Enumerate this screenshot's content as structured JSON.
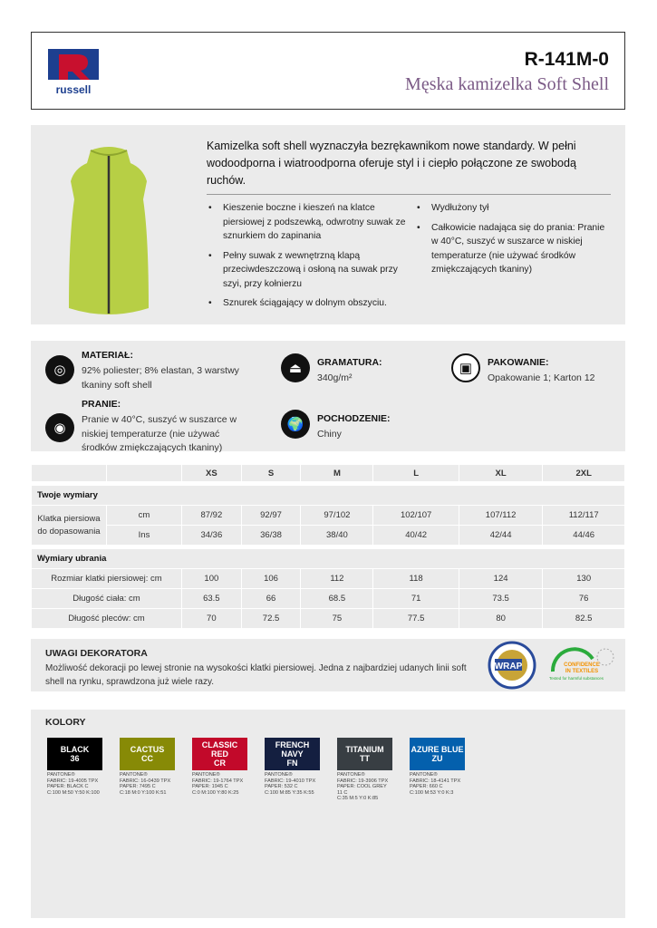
{
  "header": {
    "brand": "russell",
    "code": "R-141M-0",
    "title": "Męska kamizelka Soft Shell"
  },
  "product": {
    "intro": "Kamizelka soft shell wyznaczyła bezrękawnikom nowe standardy. W pełni wodoodporna i wiatroodporna oferuje styl i i ciepło połączone ze swobodą ruchów.",
    "features_left": [
      "Kieszenie boczne i kieszeń na klatce piersiowej z podszewką, odwrotny suwak ze sznurkiem do zapinania",
      "Pełny suwak z wewnętrzną klapą przeciwdeszczową i osłoną na suwak przy szyi, przy kołnierzu",
      "Sznurek ściągający w dolnym obszyciu."
    ],
    "features_right": [
      "Wydłużony tył",
      "Całkowicie nadająca się do prania: Pranie w 40°C, suszyć w suszarce w niskiej temperaturze (nie używać środków zmiękczających tkaniny)"
    ],
    "vest_color": "#b7cf45"
  },
  "specs": {
    "material": {
      "label": "MATERIAŁ:",
      "value": "92% poliester; 8% elastan, 3 warstwy tkaniny soft shell",
      "icon": "fabric-roll-icon"
    },
    "washing": {
      "label": "PRANIE:",
      "value": "Pranie w 40°C, suszyć w suszarce w niskiej temperaturze (nie używać środków zmiękczających tkaniny)",
      "icon": "washing-machine-icon"
    },
    "weight": {
      "label": "GRAMATURA:",
      "value": "340g/m²",
      "icon": "weight-icon"
    },
    "origin": {
      "label": "POCHODZENIE:",
      "value": "Chiny",
      "icon": "globe-icon"
    },
    "packing": {
      "label": "PAKOWANIE:",
      "value": "Opakowanie 1; Karton 12",
      "icon": "box-icon"
    }
  },
  "sizes": {
    "headers": [
      "XS",
      "S",
      "M",
      "L",
      "XL",
      "2XL"
    ],
    "your_section": "Twoje wymiary",
    "chest_fit": "Klatka piersiowa do dopasowania",
    "cm_label": "cm",
    "cm": [
      "87/92",
      "92/97",
      "97/102",
      "102/107",
      "107/112",
      "112/117"
    ],
    "ins_label": "Ins",
    "ins": [
      "34/36",
      "36/38",
      "38/40",
      "40/42",
      "42/44",
      "44/46"
    ],
    "garment_section": "Wymiary  ubrania",
    "rows": [
      {
        "label": "Rozmiar klatki piersiowej: cm",
        "values": [
          "100",
          "106",
          "112",
          "118",
          "124",
          "130"
        ]
      },
      {
        "label": "Długość ciała: cm",
        "values": [
          "63.5",
          "66",
          "68.5",
          "71",
          "73.5",
          "76"
        ]
      },
      {
        "label": "Długość pleców: cm",
        "values": [
          "70",
          "72.5",
          "75",
          "77.5",
          "80",
          "82.5"
        ]
      }
    ]
  },
  "decorator": {
    "title": "UWAGI DEKORATORA",
    "text": "Możliwość dekoracji po lewej stronie na wysokości klatki piersiowej. Jedna z najbardziej udanych linii soft shell na rynku, sprawdzona już wiele razy.",
    "wrap_logo": "WRAP WORLDWIDE RESPONSIBLE ACCREDITED PRODUCTION",
    "oeko_logo": "CONFIDENCE IN TEXTILES Tested for harmful substances"
  },
  "colors": {
    "title": "KOLORY",
    "items": [
      {
        "name": "BLACK\n36",
        "hex": "#000000",
        "info": "PANTONE®\nFABRIC: 19-4005 TPX\nPAPER: BLACK C\nC:100 M:50 Y:50 K:100"
      },
      {
        "name": "CACTUS\nCC",
        "hex": "#878a06",
        "info": "PANTONE®\nFABRIC: 16-0439 TPX\nPAPER: 7495 C\nC:18 M:0 Y:100 K:51"
      },
      {
        "name": "CLASSIC\nRED\nCR",
        "hex": "#c2092a",
        "info": "PANTONE®\nFABRIC: 19-1764 TPX\nPAPER: 1945 C\nC:0 M:100 Y:80 K:25"
      },
      {
        "name": "FRENCH\nNAVY\nFN",
        "hex": "#141f40",
        "info": "PANTONE®\nFABRIC: 19-4010 TPX\nPAPER: 532 C\nC:100 M:85 Y:35 K:55"
      },
      {
        "name": "TITANIUM\nTT",
        "hex": "#383e43",
        "info": "PANTONE®\nFABRIC: 19-3906 TPX\nPAPER: COOL GREY 11 C\nC:35 M:5 Y:0 K:85"
      },
      {
        "name": "AZURE BLUE\nZU",
        "hex": "#0460ad",
        "info": "PANTONE®\nFABRIC: 18-4141 TPX\nPAPER: 660 C\nC:100 M:53 Y:0 K:3"
      }
    ]
  }
}
